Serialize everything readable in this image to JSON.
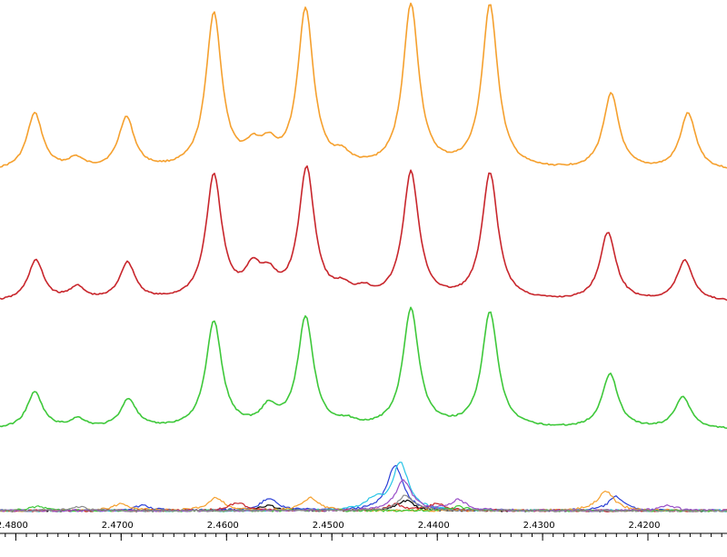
{
  "chart_data": {
    "type": "line",
    "title": "",
    "xlabel": "",
    "ylabel": "",
    "x_reversed": true,
    "xlim": [
      2.4815,
      2.4125
    ],
    "tick_labels": [
      "2.4800",
      "2.4700",
      "2.4600",
      "2.4500",
      "2.4400",
      "2.4300",
      "2.4200"
    ],
    "tick_values": [
      2.48,
      2.47,
      2.46,
      2.45,
      2.44,
      2.43,
      2.42
    ],
    "grid": false,
    "legend": "none",
    "series": [
      {
        "color": "#f5a02e",
        "baseline": 0.0,
        "peaks": [
          {
            "x": 2.4782,
            "height": 0.33
          },
          {
            "x": 2.4743,
            "height": 0.06
          },
          {
            "x": 2.4695,
            "height": 0.3
          },
          {
            "x": 2.4612,
            "height": 0.9
          },
          {
            "x": 2.4575,
            "height": 0.1
          },
          {
            "x": 2.456,
            "height": 0.11
          },
          {
            "x": 2.4525,
            "height": 0.92
          },
          {
            "x": 2.449,
            "height": 0.06
          },
          {
            "x": 2.4425,
            "height": 0.95
          },
          {
            "x": 2.435,
            "height": 0.95
          },
          {
            "x": 2.4235,
            "height": 0.44
          },
          {
            "x": 2.4162,
            "height": 0.33
          }
        ]
      },
      {
        "color": "#c8262c",
        "baseline": 0.0,
        "peaks": [
          {
            "x": 2.4781,
            "height": 0.25
          },
          {
            "x": 2.4742,
            "height": 0.08
          },
          {
            "x": 2.4694,
            "height": 0.23
          },
          {
            "x": 2.4612,
            "height": 0.76
          },
          {
            "x": 2.4575,
            "height": 0.17
          },
          {
            "x": 2.456,
            "height": 0.12
          },
          {
            "x": 2.4524,
            "height": 0.8
          },
          {
            "x": 2.449,
            "height": 0.06
          },
          {
            "x": 2.447,
            "height": 0.05
          },
          {
            "x": 2.4425,
            "height": 0.78
          },
          {
            "x": 2.435,
            "height": 0.78
          },
          {
            "x": 2.4238,
            "height": 0.42
          },
          {
            "x": 2.4165,
            "height": 0.25
          }
        ]
      },
      {
        "color": "#3ec83a",
        "baseline": 0.0,
        "peaks": [
          {
            "x": 2.4782,
            "height": 0.24
          },
          {
            "x": 2.4741,
            "height": 0.06
          },
          {
            "x": 2.4693,
            "height": 0.19
          },
          {
            "x": 2.4612,
            "height": 0.7
          },
          {
            "x": 2.456,
            "height": 0.12
          },
          {
            "x": 2.4525,
            "height": 0.72
          },
          {
            "x": 2.4485,
            "height": 0.03
          },
          {
            "x": 2.4425,
            "height": 0.78
          },
          {
            "x": 2.435,
            "height": 0.76
          },
          {
            "x": 2.4236,
            "height": 0.36
          },
          {
            "x": 2.4167,
            "height": 0.21
          }
        ]
      }
    ],
    "baseline_series": [
      {
        "color": "#000000",
        "peaks": [
          {
            "x": 2.443,
            "height": 0.1
          },
          {
            "x": 2.456,
            "height": 0.05
          }
        ]
      },
      {
        "color": "#2a3fd6",
        "peaks": [
          {
            "x": 2.444,
            "height": 0.45
          },
          {
            "x": 2.456,
            "height": 0.12
          },
          {
            "x": 2.468,
            "height": 0.05
          },
          {
            "x": 2.423,
            "height": 0.14
          }
        ]
      },
      {
        "color": "#27c4e6",
        "peaks": [
          {
            "x": 2.4435,
            "height": 0.48
          },
          {
            "x": 2.446,
            "height": 0.1
          }
        ]
      },
      {
        "color": "#f5a02e",
        "peaks": [
          {
            "x": 2.461,
            "height": 0.13
          },
          {
            "x": 2.452,
            "height": 0.13
          },
          {
            "x": 2.47,
            "height": 0.07
          },
          {
            "x": 2.424,
            "height": 0.2
          }
        ]
      },
      {
        "color": "#c8262c",
        "peaks": [
          {
            "x": 2.459,
            "height": 0.08
          },
          {
            "x": 2.444,
            "height": 0.06
          },
          {
            "x": 2.44,
            "height": 0.07
          }
        ]
      },
      {
        "color": "#3ec83a",
        "peaks": [
          {
            "x": 2.438,
            "height": 0.04
          },
          {
            "x": 2.478,
            "height": 0.04
          }
        ]
      },
      {
        "color": "#9a4fc8",
        "peaks": [
          {
            "x": 2.4432,
            "height": 0.3
          },
          {
            "x": 2.438,
            "height": 0.1
          },
          {
            "x": 2.418,
            "height": 0.05
          }
        ]
      },
      {
        "color": "#8a8a8a",
        "peaks": [
          {
            "x": 2.443,
            "height": 0.15
          },
          {
            "x": 2.474,
            "height": 0.04
          }
        ]
      }
    ]
  }
}
